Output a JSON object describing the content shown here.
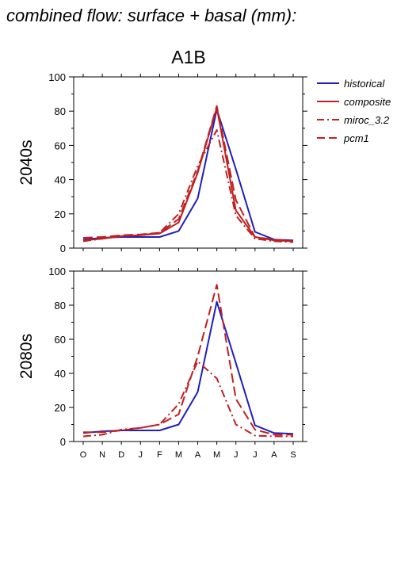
{
  "header": {
    "title": "combined flow: surface + basal (mm):"
  },
  "panel_title": "A1B",
  "legend": [
    {
      "label": "historical",
      "color": "#1f1fbf",
      "style": "solid"
    },
    {
      "label": "composite",
      "color": "#c21f1f",
      "style": "solid"
    },
    {
      "label": "miroc_3.2",
      "color": "#c21f1f",
      "style": "dashdot"
    },
    {
      "label": "pcm1",
      "color": "#c21f1f",
      "style": "dashed"
    }
  ],
  "chart_data": [
    {
      "type": "line",
      "row_label": "2040s",
      "categories": [
        "O",
        "N",
        "D",
        "J",
        "F",
        "M",
        "A",
        "M",
        "J",
        "J",
        "A",
        "S"
      ],
      "ylim": [
        0,
        100
      ],
      "yticks": [
        0,
        20,
        40,
        60,
        80,
        100
      ],
      "series": [
        {
          "name": "historical",
          "values": [
            5,
            6,
            6.5,
            6.5,
            6.5,
            10,
            29,
            81,
            46,
            9.5,
            5,
            4.5
          ]
        },
        {
          "name": "composite",
          "values": [
            4.5,
            5.5,
            7,
            7.5,
            8.5,
            15,
            44,
            82,
            22,
            6.5,
            4.5,
            4
          ]
        },
        {
          "name": "miroc_3.2",
          "values": [
            4,
            5.5,
            7,
            7.5,
            9,
            20,
            48,
            69,
            19,
            5.5,
            4,
            3.5
          ]
        },
        {
          "name": "pcm1",
          "values": [
            6,
            6.5,
            7.5,
            8,
            9,
            17,
            45,
            83,
            28,
            6.5,
            5,
            4
          ]
        }
      ]
    },
    {
      "type": "line",
      "row_label": "2080s",
      "categories": [
        "O",
        "N",
        "D",
        "J",
        "F",
        "M",
        "A",
        "M",
        "J",
        "J",
        "A",
        "S"
      ],
      "ylim": [
        0,
        100
      ],
      "yticks": [
        0,
        20,
        40,
        60,
        80,
        100
      ],
      "series": [
        {
          "name": "historical",
          "values": [
            5,
            6,
            6.5,
            6.5,
            6.5,
            10,
            29,
            82,
            46,
            9.5,
            5,
            4.5
          ]
        },
        {
          "name": "miroc_3.2",
          "values": [
            3,
            4,
            7,
            8,
            10,
            22,
            47,
            37,
            10,
            3.5,
            3,
            3
          ]
        },
        {
          "name": "pcm1",
          "values": [
            5.5,
            5.5,
            6.5,
            8,
            10,
            16,
            50,
            92,
            25,
            7,
            4,
            4
          ]
        }
      ]
    }
  ]
}
